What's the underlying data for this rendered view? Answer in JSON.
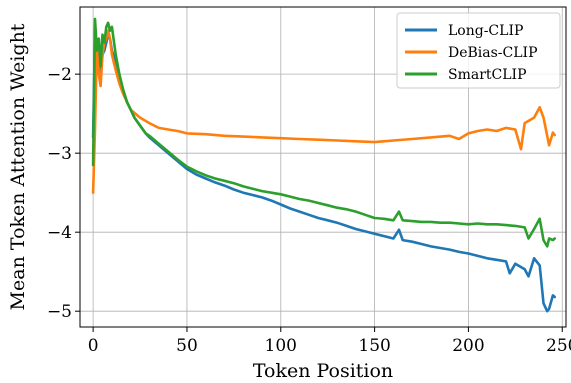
{
  "chart_data": {
    "type": "line",
    "title": "",
    "xlabel": "Token Position",
    "ylabel": "Mean Token Attention Weight",
    "xlim": [
      -7,
      252
    ],
    "ylim": [
      -5.2,
      -1.15
    ],
    "xticks": [
      0,
      50,
      100,
      150,
      200,
      250
    ],
    "yticks": [
      -5,
      -4,
      -3,
      -2
    ],
    "xtick_labels": [
      "0",
      "50",
      "100",
      "150",
      "200",
      "250"
    ],
    "ytick_labels": [
      "−5",
      "−4",
      "−3",
      "−2"
    ],
    "grid": true,
    "legend_position": "top-right",
    "series": [
      {
        "name": "Long-CLIP",
        "color": "#1f77b4",
        "points": [
          [
            0,
            -2.8
          ],
          [
            1,
            -1.45
          ],
          [
            2,
            -1.9
          ],
          [
            3,
            -1.65
          ],
          [
            4,
            -2.0
          ],
          [
            5,
            -1.75
          ],
          [
            6,
            -1.7
          ],
          [
            7,
            -1.6
          ],
          [
            8,
            -1.5
          ],
          [
            9,
            -1.55
          ],
          [
            10,
            -1.7
          ],
          [
            12,
            -1.85
          ],
          [
            14,
            -2.05
          ],
          [
            16,
            -2.2
          ],
          [
            18,
            -2.35
          ],
          [
            20,
            -2.45
          ],
          [
            22,
            -2.55
          ],
          [
            25,
            -2.65
          ],
          [
            28,
            -2.75
          ],
          [
            30,
            -2.8
          ],
          [
            35,
            -2.9
          ],
          [
            40,
            -3.0
          ],
          [
            45,
            -3.1
          ],
          [
            50,
            -3.2
          ],
          [
            55,
            -3.27
          ],
          [
            60,
            -3.32
          ],
          [
            65,
            -3.37
          ],
          [
            70,
            -3.41
          ],
          [
            75,
            -3.46
          ],
          [
            80,
            -3.5
          ],
          [
            85,
            -3.53
          ],
          [
            90,
            -3.56
          ],
          [
            95,
            -3.6
          ],
          [
            100,
            -3.65
          ],
          [
            105,
            -3.7
          ],
          [
            110,
            -3.74
          ],
          [
            115,
            -3.78
          ],
          [
            120,
            -3.82
          ],
          [
            125,
            -3.85
          ],
          [
            130,
            -3.88
          ],
          [
            135,
            -3.92
          ],
          [
            140,
            -3.96
          ],
          [
            145,
            -3.99
          ],
          [
            150,
            -4.02
          ],
          [
            155,
            -4.05
          ],
          [
            160,
            -4.08
          ],
          [
            163,
            -3.97
          ],
          [
            165,
            -4.1
          ],
          [
            170,
            -4.12
          ],
          [
            175,
            -4.15
          ],
          [
            180,
            -4.18
          ],
          [
            185,
            -4.2
          ],
          [
            190,
            -4.22
          ],
          [
            195,
            -4.25
          ],
          [
            200,
            -4.27
          ],
          [
            205,
            -4.3
          ],
          [
            210,
            -4.33
          ],
          [
            215,
            -4.35
          ],
          [
            220,
            -4.37
          ],
          [
            222,
            -4.52
          ],
          [
            225,
            -4.4
          ],
          [
            230,
            -4.47
          ],
          [
            232,
            -4.56
          ],
          [
            235,
            -4.33
          ],
          [
            238,
            -4.42
          ],
          [
            240,
            -4.9
          ],
          [
            242,
            -5.0
          ],
          [
            243,
            -4.97
          ],
          [
            245,
            -4.8
          ],
          [
            246,
            -4.82
          ]
        ]
      },
      {
        "name": "DeBias-CLIP",
        "color": "#ff7f0e",
        "points": [
          [
            0,
            -3.5
          ],
          [
            1,
            -2.7
          ],
          [
            2,
            -1.6
          ],
          [
            3,
            -2.0
          ],
          [
            4,
            -2.15
          ],
          [
            5,
            -1.75
          ],
          [
            6,
            -1.6
          ],
          [
            7,
            -1.55
          ],
          [
            8,
            -1.45
          ],
          [
            9,
            -1.55
          ],
          [
            10,
            -1.75
          ],
          [
            12,
            -1.95
          ],
          [
            14,
            -2.12
          ],
          [
            16,
            -2.25
          ],
          [
            18,
            -2.35
          ],
          [
            20,
            -2.45
          ],
          [
            25,
            -2.55
          ],
          [
            30,
            -2.62
          ],
          [
            35,
            -2.68
          ],
          [
            40,
            -2.7
          ],
          [
            45,
            -2.72
          ],
          [
            50,
            -2.75
          ],
          [
            60,
            -2.76
          ],
          [
            70,
            -2.78
          ],
          [
            80,
            -2.79
          ],
          [
            90,
            -2.8
          ],
          [
            100,
            -2.81
          ],
          [
            110,
            -2.82
          ],
          [
            120,
            -2.83
          ],
          [
            130,
            -2.84
          ],
          [
            140,
            -2.85
          ],
          [
            150,
            -2.86
          ],
          [
            160,
            -2.84
          ],
          [
            170,
            -2.82
          ],
          [
            180,
            -2.8
          ],
          [
            190,
            -2.78
          ],
          [
            195,
            -2.82
          ],
          [
            200,
            -2.75
          ],
          [
            205,
            -2.72
          ],
          [
            210,
            -2.7
          ],
          [
            215,
            -2.72
          ],
          [
            220,
            -2.68
          ],
          [
            225,
            -2.7
          ],
          [
            228,
            -2.95
          ],
          [
            230,
            -2.62
          ],
          [
            235,
            -2.55
          ],
          [
            238,
            -2.42
          ],
          [
            240,
            -2.55
          ],
          [
            242,
            -2.78
          ],
          [
            243,
            -2.9
          ],
          [
            245,
            -2.74
          ],
          [
            246,
            -2.77
          ]
        ]
      },
      {
        "name": "SmartCLIP",
        "color": "#2ca02c",
        "points": [
          [
            0,
            -3.15
          ],
          [
            1,
            -1.3
          ],
          [
            2,
            -1.7
          ],
          [
            3,
            -1.55
          ],
          [
            4,
            -1.9
          ],
          [
            5,
            -1.5
          ],
          [
            6,
            -1.6
          ],
          [
            7,
            -1.4
          ],
          [
            8,
            -1.35
          ],
          [
            9,
            -1.45
          ],
          [
            10,
            -1.4
          ],
          [
            12,
            -1.75
          ],
          [
            14,
            -2.0
          ],
          [
            16,
            -2.2
          ],
          [
            18,
            -2.35
          ],
          [
            20,
            -2.45
          ],
          [
            22,
            -2.55
          ],
          [
            25,
            -2.65
          ],
          [
            28,
            -2.75
          ],
          [
            30,
            -2.78
          ],
          [
            35,
            -2.88
          ],
          [
            40,
            -2.98
          ],
          [
            45,
            -3.08
          ],
          [
            50,
            -3.17
          ],
          [
            55,
            -3.23
          ],
          [
            60,
            -3.28
          ],
          [
            65,
            -3.32
          ],
          [
            70,
            -3.35
          ],
          [
            75,
            -3.38
          ],
          [
            80,
            -3.42
          ],
          [
            85,
            -3.45
          ],
          [
            90,
            -3.48
          ],
          [
            95,
            -3.5
          ],
          [
            100,
            -3.52
          ],
          [
            105,
            -3.55
          ],
          [
            110,
            -3.58
          ],
          [
            115,
            -3.6
          ],
          [
            120,
            -3.63
          ],
          [
            125,
            -3.66
          ],
          [
            130,
            -3.69
          ],
          [
            135,
            -3.71
          ],
          [
            140,
            -3.74
          ],
          [
            145,
            -3.78
          ],
          [
            150,
            -3.82
          ],
          [
            155,
            -3.83
          ],
          [
            160,
            -3.85
          ],
          [
            163,
            -3.74
          ],
          [
            165,
            -3.85
          ],
          [
            170,
            -3.86
          ],
          [
            175,
            -3.87
          ],
          [
            180,
            -3.87
          ],
          [
            185,
            -3.88
          ],
          [
            190,
            -3.88
          ],
          [
            195,
            -3.89
          ],
          [
            200,
            -3.9
          ],
          [
            205,
            -3.89
          ],
          [
            210,
            -3.9
          ],
          [
            215,
            -3.9
          ],
          [
            220,
            -3.91
          ],
          [
            225,
            -3.92
          ],
          [
            230,
            -3.94
          ],
          [
            232,
            -4.08
          ],
          [
            235,
            -3.96
          ],
          [
            238,
            -3.83
          ],
          [
            240,
            -4.1
          ],
          [
            242,
            -4.18
          ],
          [
            243,
            -4.08
          ],
          [
            245,
            -4.1
          ],
          [
            246,
            -4.08
          ]
        ]
      }
    ]
  }
}
